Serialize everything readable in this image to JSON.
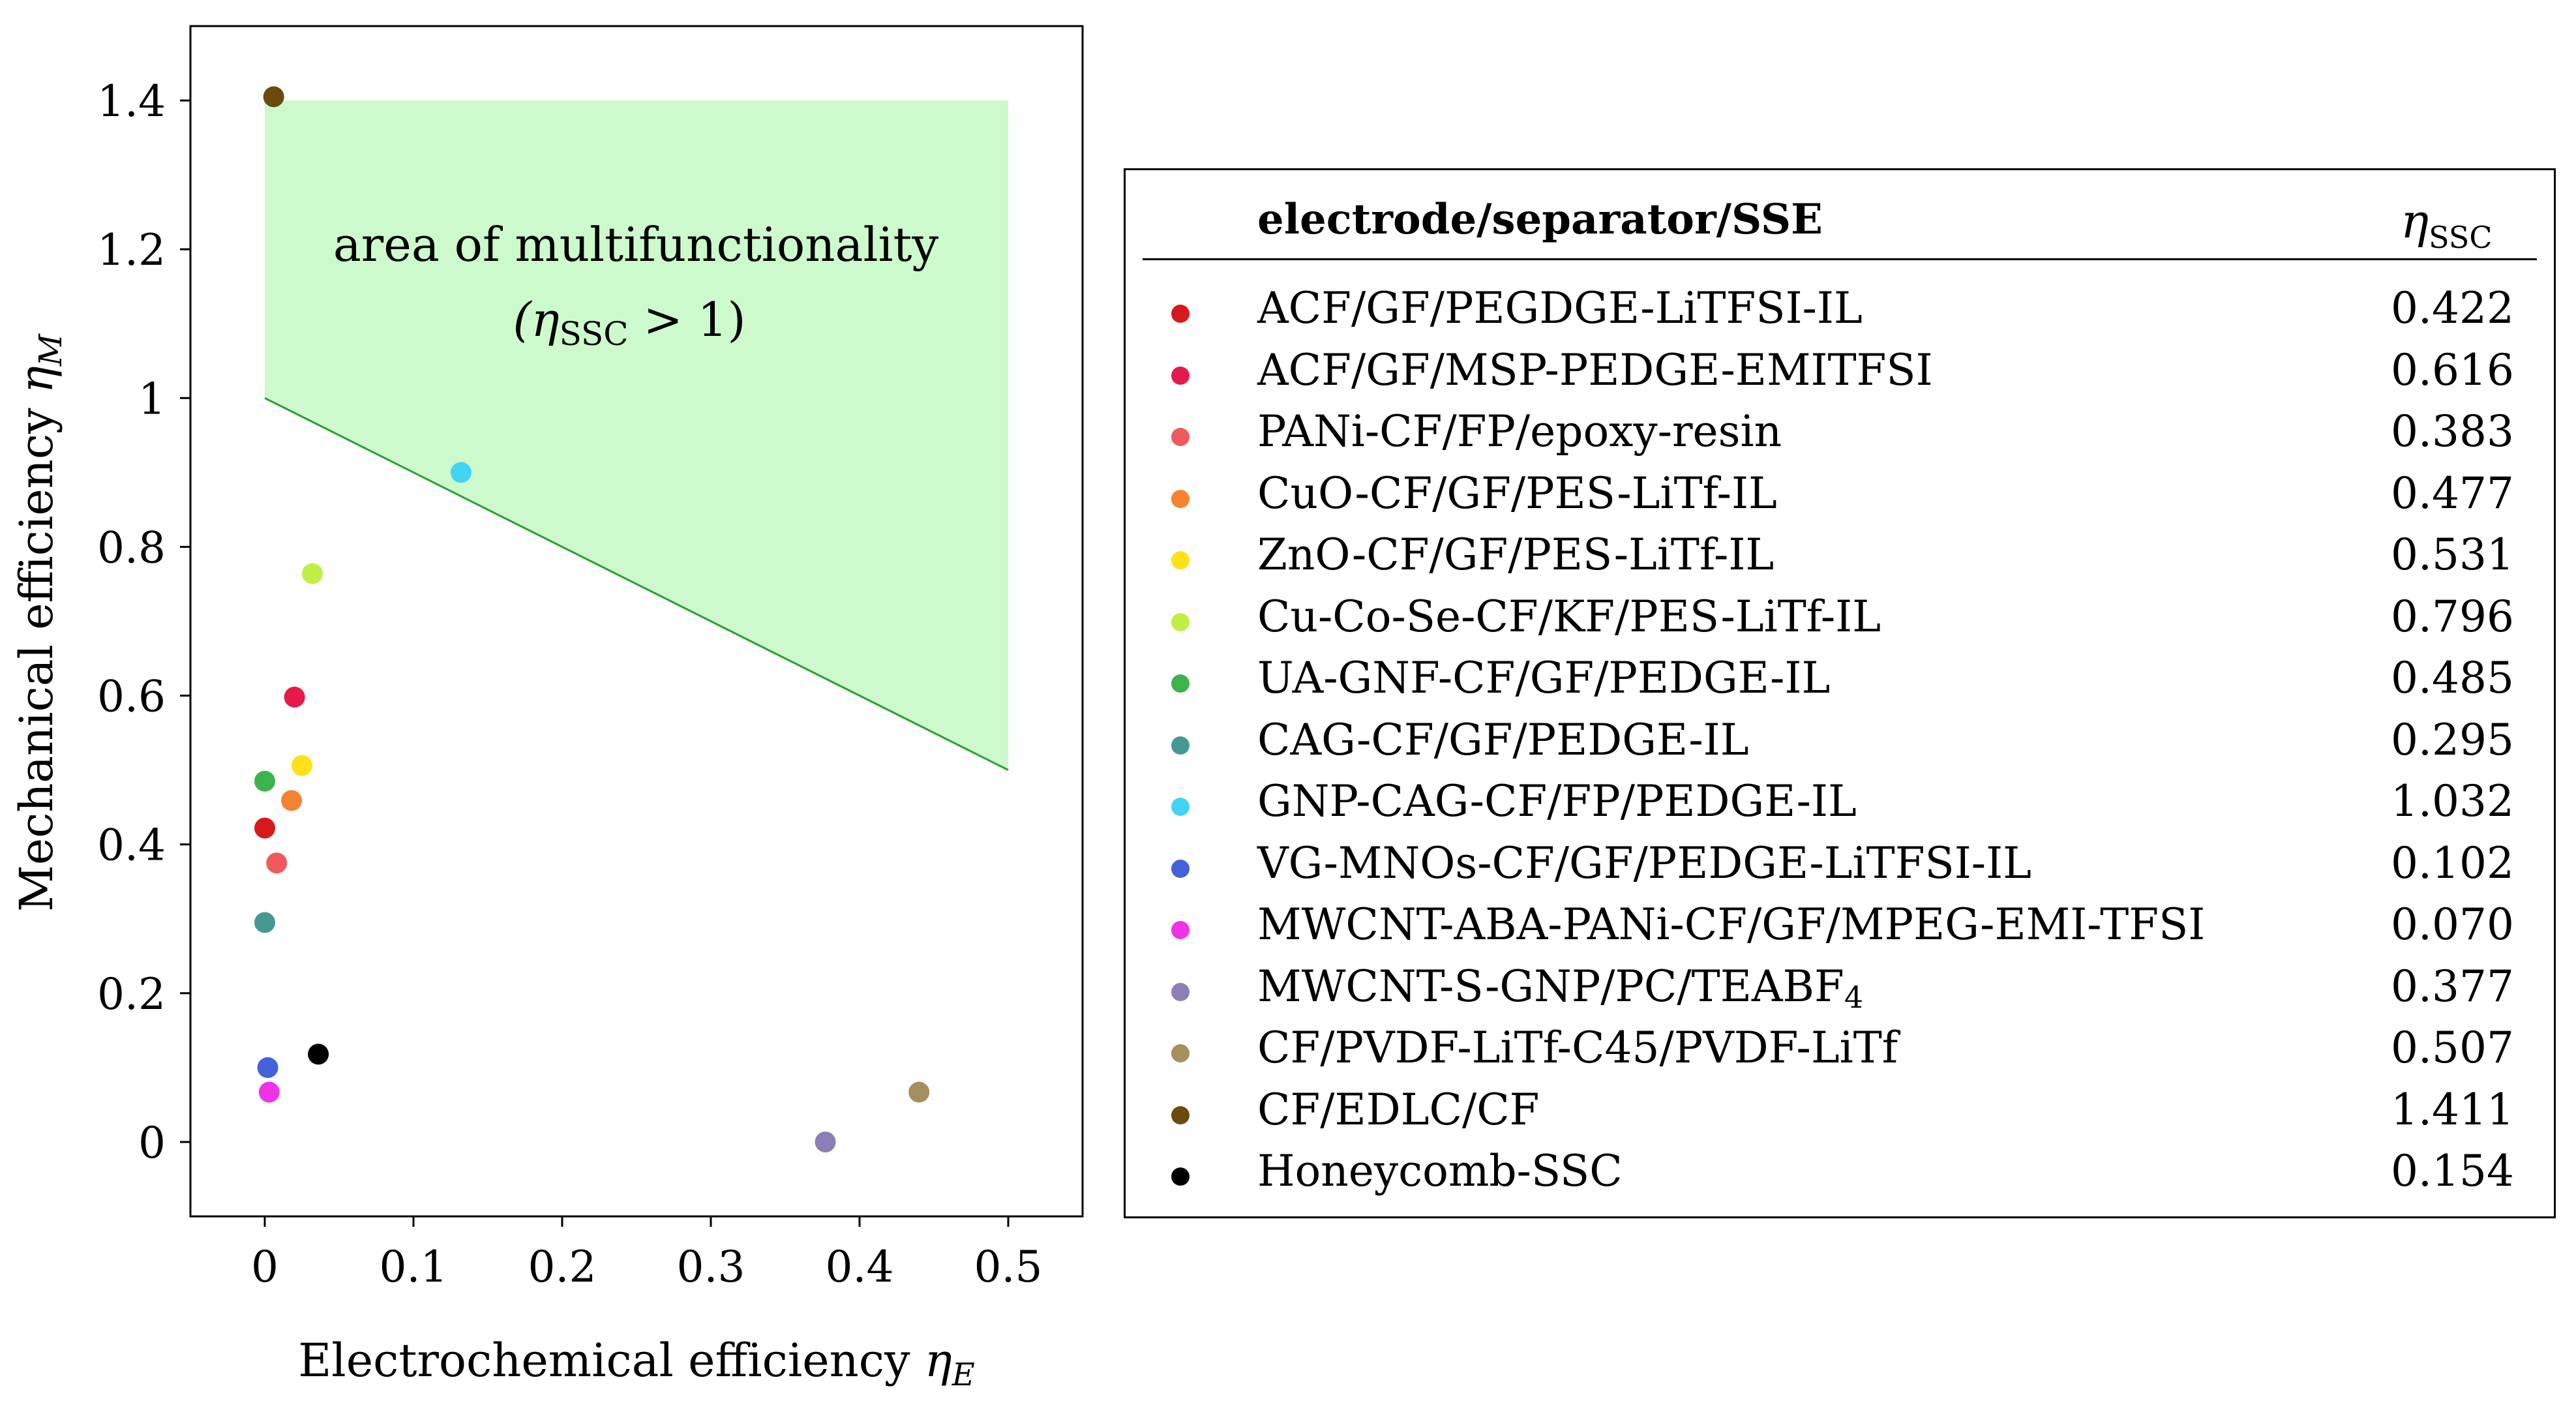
{
  "chart_data": {
    "type": "scatter",
    "xlabel": "Electrochemical efficiency",
    "xlabel_symbol": "η",
    "xlabel_sub": "E",
    "ylabel": "Mechanical efficiency",
    "ylabel_symbol": "η",
    "ylabel_sub": "M",
    "xlim": [
      -0.05,
      0.55
    ],
    "ylim": [
      -0.1,
      1.5
    ],
    "xticks": [
      0,
      0.1,
      0.2,
      0.3,
      0.4,
      0.5
    ],
    "xtick_labels": [
      "0",
      "0.1",
      "0.2",
      "0.3",
      "0.4",
      "0.5"
    ],
    "yticks": [
      0,
      0.2,
      0.4,
      0.6,
      0.8,
      1,
      1.2,
      1.4
    ],
    "ytick_labels": [
      "0",
      "0.2",
      "0.4",
      "0.6",
      "0.8",
      "1",
      "1.2",
      "1.4"
    ],
    "grid": false,
    "region": {
      "label_line1": "area of multifunctionality",
      "label_line2_open": "(η",
      "label_line2_sub": "SSC",
      "label_line2_rest": " > 1)",
      "polygon": [
        [
          0,
          1.0
        ],
        [
          0,
          1.4
        ],
        [
          0.5,
          1.4
        ],
        [
          0.5,
          0.5
        ]
      ],
      "fill_color": "#ccfacc",
      "line_color": "#2ca02c"
    },
    "legend": {
      "header_label": "electrode/separator/SSE",
      "header_value_symbol": "η",
      "header_value_sub": "SSC"
    },
    "series": [
      {
        "name": "ACF/GF/PEGDGE-LiTFSI-IL",
        "eta_ssc": "0.422",
        "x": 0.0,
        "y": 0.422,
        "color": "#d7191c"
      },
      {
        "name": "ACF/GF/MSP-PEDGE-EMITFSI",
        "eta_ssc": "0.616",
        "x": 0.02,
        "y": 0.598,
        "color": "#e6194b"
      },
      {
        "name": "PANi-CF/FP/epoxy-resin",
        "eta_ssc": "0.383",
        "x": 0.008,
        "y": 0.375,
        "color": "#f05a5a"
      },
      {
        "name": "CuO-CF/GF/PES-LiTf-IL",
        "eta_ssc": "0.477",
        "x": 0.018,
        "y": 0.459,
        "color": "#f58231"
      },
      {
        "name": "ZnO-CF/GF/PES-LiTf-IL",
        "eta_ssc": "0.531",
        "x": 0.025,
        "y": 0.506,
        "color": "#ffe119"
      },
      {
        "name": "Cu-Co-Se-CF/KF/PES-LiTf-IL",
        "eta_ssc": "0.796",
        "x": 0.032,
        "y": 0.764,
        "color": "#bfef45"
      },
      {
        "name": "UA-GNF-CF/GF/PEDGE-IL",
        "eta_ssc": "0.485",
        "x": 0.0,
        "y": 0.485,
        "color": "#3cb44b"
      },
      {
        "name": "CAG-CF/GF/PEDGE-IL",
        "eta_ssc": "0.295",
        "x": 0.0,
        "y": 0.295,
        "color": "#469990"
      },
      {
        "name": "GNP-CAG-CF/FP/PEDGE-IL",
        "eta_ssc": "1.032",
        "x": 0.132,
        "y": 0.9,
        "color": "#42d4f4"
      },
      {
        "name": "VG-MNOs-CF/GF/PEDGE-LiTFSI-IL",
        "eta_ssc": "0.102",
        "x": 0.002,
        "y": 0.1,
        "color": "#4363d8"
      },
      {
        "name": "MWCNT-ABA-PANi-CF/GF/MPEG-EMI-TFSI",
        "eta_ssc": "0.070",
        "x": 0.003,
        "y": 0.067,
        "color": "#f032e6"
      },
      {
        "name": "MWCNT-S-GNP/PC/TEABF",
        "name_sub": "4",
        "eta_ssc": "0.377",
        "x": 0.377,
        "y": 0.0,
        "color": "#8c7fb8"
      },
      {
        "name": "CF/PVDF-LiTf-C45/PVDF-LiTf",
        "eta_ssc": "0.507",
        "x": 0.44,
        "y": 0.067,
        "color": "#a68f5e"
      },
      {
        "name": "CF/EDLC/CF",
        "eta_ssc": "1.411",
        "x": 0.006,
        "y": 1.405,
        "color": "#6b4a0e"
      },
      {
        "name": "Honeycomb-SSC",
        "eta_ssc": "0.154",
        "x": 0.036,
        "y": 0.118,
        "color": "#000000"
      }
    ]
  }
}
